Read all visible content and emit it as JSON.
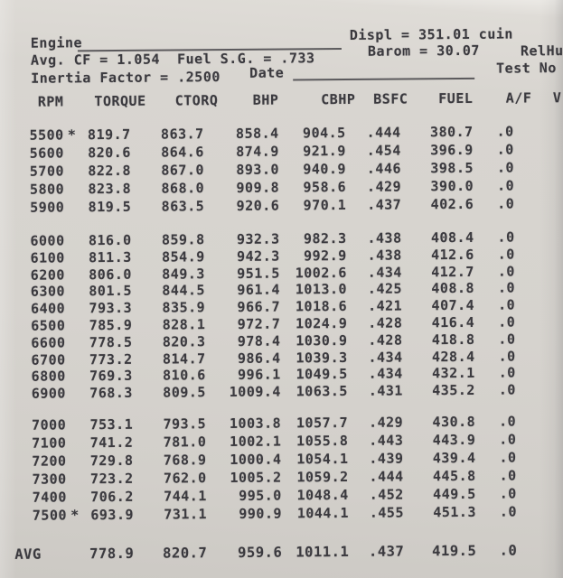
{
  "sheet": {
    "header": {
      "engine_label": "Engine",
      "displ": "Displ = 351.01 cuin",
      "avg_cf_fuel": "Avg. CF = 1.054  Fuel S.G. = .733",
      "barom": "Barom = 30.07",
      "relhum_partial": "RelHu",
      "inertia": "Inertia Factor = .2500",
      "date_label": "Date",
      "test_no_label": "Test No"
    },
    "table": {
      "columns": [
        "RPM",
        "TORQUE",
        "CTORQ",
        "BHP",
        "CBHP",
        "BSFC",
        "FUEL",
        "A/F"
      ],
      "partial_last_column": "V",
      "groups": [
        [
          [
            "5500",
            "*",
            "819.7",
            "863.7",
            "858.4",
            "904.5",
            ".444",
            "380.7",
            ".0"
          ],
          [
            "5600",
            "",
            "820.6",
            "864.6",
            "874.9",
            "921.9",
            ".454",
            "396.9",
            ".0"
          ],
          [
            "5700",
            "",
            "822.8",
            "867.0",
            "893.0",
            "940.9",
            ".446",
            "398.5",
            ".0"
          ],
          [
            "5800",
            "",
            "823.8",
            "868.0",
            "909.8",
            "958.6",
            ".429",
            "390.0",
            ".0"
          ],
          [
            "5900",
            "",
            "819.5",
            "863.5",
            "920.6",
            "970.1",
            ".437",
            "402.6",
            ".0"
          ]
        ],
        [
          [
            "6000",
            "",
            "816.0",
            "859.8",
            "932.3",
            "982.3",
            ".438",
            "408.4",
            ".0"
          ],
          [
            "6100",
            "",
            "811.3",
            "854.9",
            "942.3",
            "992.9",
            ".438",
            "412.6",
            ".0"
          ],
          [
            "6200",
            "",
            "806.0",
            "849.3",
            "951.5",
            "1002.6",
            ".434",
            "412.7",
            ".0"
          ],
          [
            "6300",
            "",
            "801.5",
            "844.5",
            "961.4",
            "1013.0",
            ".425",
            "408.8",
            ".0"
          ],
          [
            "6400",
            "",
            "793.3",
            "835.9",
            "966.7",
            "1018.6",
            ".421",
            "407.4",
            ".0"
          ],
          [
            "6500",
            "",
            "785.9",
            "828.1",
            "972.7",
            "1024.9",
            ".428",
            "416.4",
            ".0"
          ],
          [
            "6600",
            "",
            "778.5",
            "820.3",
            "978.4",
            "1030.9",
            ".428",
            "418.8",
            ".0"
          ],
          [
            "6700",
            "",
            "773.2",
            "814.7",
            "986.4",
            "1039.3",
            ".434",
            "428.4",
            ".0"
          ],
          [
            "6800",
            "",
            "769.3",
            "810.6",
            "996.1",
            "1049.5",
            ".434",
            "432.1",
            ".0"
          ],
          [
            "6900",
            "",
            "768.3",
            "809.5",
            "1009.4",
            "1063.5",
            ".431",
            "435.2",
            ".0"
          ]
        ],
        [
          [
            "7000",
            "",
            "753.1",
            "793.5",
            "1003.8",
            "1057.7",
            ".429",
            "430.8",
            ".0"
          ],
          [
            "7100",
            "",
            "741.2",
            "781.0",
            "1002.1",
            "1055.8",
            ".443",
            "443.9",
            ".0"
          ],
          [
            "7200",
            "",
            "729.8",
            "768.9",
            "1000.4",
            "1054.1",
            ".439",
            "439.4",
            ".0"
          ],
          [
            "7300",
            "",
            "723.2",
            "762.0",
            "1005.2",
            "1059.2",
            ".444",
            "445.8",
            ".0"
          ],
          [
            "7400",
            "",
            "706.2",
            "744.1",
            "995.0",
            "1048.4",
            ".452",
            "449.5",
            ".0"
          ],
          [
            "7500",
            "*",
            "693.9",
            "731.1",
            "990.9",
            "1044.1",
            ".455",
            "451.3",
            ".0"
          ]
        ]
      ],
      "avg_row": [
        "AVG",
        "",
        "778.9",
        "820.7",
        "959.6",
        "1011.1",
        ".437",
        "419.5",
        ".0"
      ]
    },
    "colors": {
      "paper": "#d6d3ce",
      "ink": "#3b3a3f"
    }
  }
}
